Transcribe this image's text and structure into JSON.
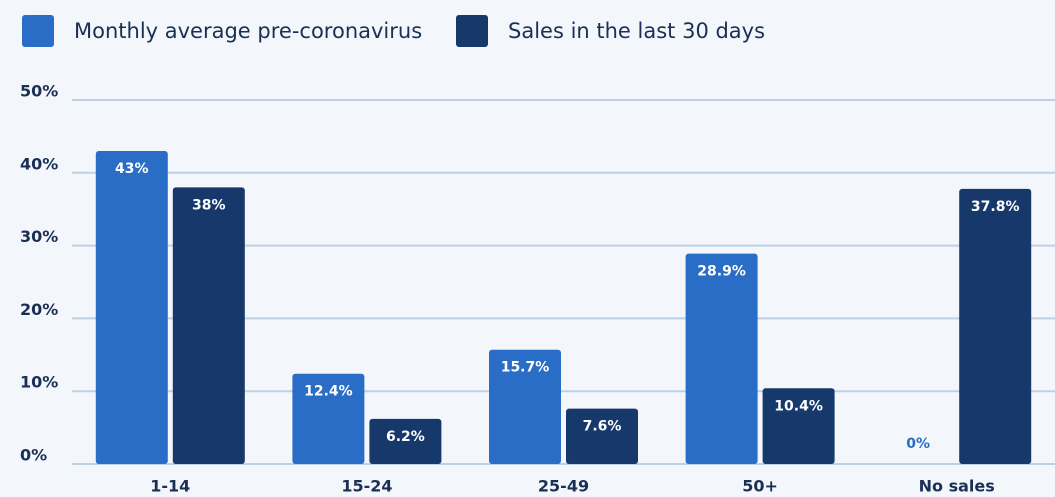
{
  "chart_data": {
    "type": "bar",
    "categories": [
      "1-14",
      "15-24",
      "25-49",
      "50+",
      "No sales"
    ],
    "series": [
      {
        "name": "Monthly average pre-coronavirus",
        "color": "#2a6dc6",
        "values": [
          43,
          12.4,
          15.7,
          28.9,
          0
        ],
        "value_labels": [
          "43%",
          "12.4%",
          "15.7%",
          "28.9%",
          "0%"
        ]
      },
      {
        "name": "Sales in the last 30 days",
        "color": "#16386b",
        "values": [
          38,
          6.2,
          7.6,
          10.4,
          37.8
        ],
        "value_labels": [
          "38%",
          "6.2%",
          "7.6%",
          "10.4%",
          "37.8%"
        ]
      }
    ],
    "ylim": [
      0,
      50
    ],
    "yticks": [
      {
        "value": 0,
        "label": "0%"
      },
      {
        "value": 10,
        "label": "10%"
      },
      {
        "value": 20,
        "label": "20%"
      },
      {
        "value": 30,
        "label": "30%"
      },
      {
        "value": 40,
        "label": "40%"
      },
      {
        "value": 50,
        "label": "50%"
      }
    ],
    "grid": true
  }
}
